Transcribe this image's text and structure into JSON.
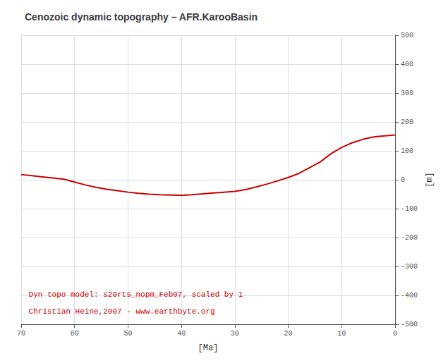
{
  "chart_data": {
    "type": "line",
    "title": "Cenozoic dynamic topography – AFR.KarooBasin",
    "xlabel": "[Ma]",
    "ylabel": "[m]",
    "x": [
      70,
      68,
      66,
      64,
      62,
      60,
      58,
      56,
      54,
      52,
      50,
      48,
      46,
      44,
      42,
      40,
      38,
      36,
      34,
      32,
      30,
      28,
      26,
      24,
      22,
      20,
      18,
      16,
      14,
      12,
      10,
      8,
      6,
      4,
      2,
      0
    ],
    "values": [
      18,
      14,
      10,
      6,
      2,
      -8,
      -18,
      -26,
      -33,
      -38,
      -43,
      -47,
      -50,
      -52,
      -53,
      -54,
      -52,
      -49,
      -46,
      -43,
      -40,
      -34,
      -25,
      -15,
      -4,
      8,
      22,
      42,
      62,
      90,
      112,
      128,
      140,
      148,
      152,
      155
    ],
    "color": "#cc0000",
    "xlim": [
      70,
      0
    ],
    "ylim": [
      -500,
      500
    ],
    "xticks": [
      70,
      60,
      50,
      40,
      30,
      20,
      10,
      0
    ],
    "yticks": [
      -500,
      -400,
      -300,
      -200,
      -100,
      0,
      100,
      200,
      300,
      400,
      500
    ],
    "grid": true,
    "annotations": [
      {
        "text": "Dyn topo model: s20rts_nopm_Feb07, scaled by 1",
        "color": "#cc0000"
      },
      {
        "text": "Christian Heine,2007 - www.earthbyte.org",
        "color": "#cc0000"
      }
    ]
  }
}
